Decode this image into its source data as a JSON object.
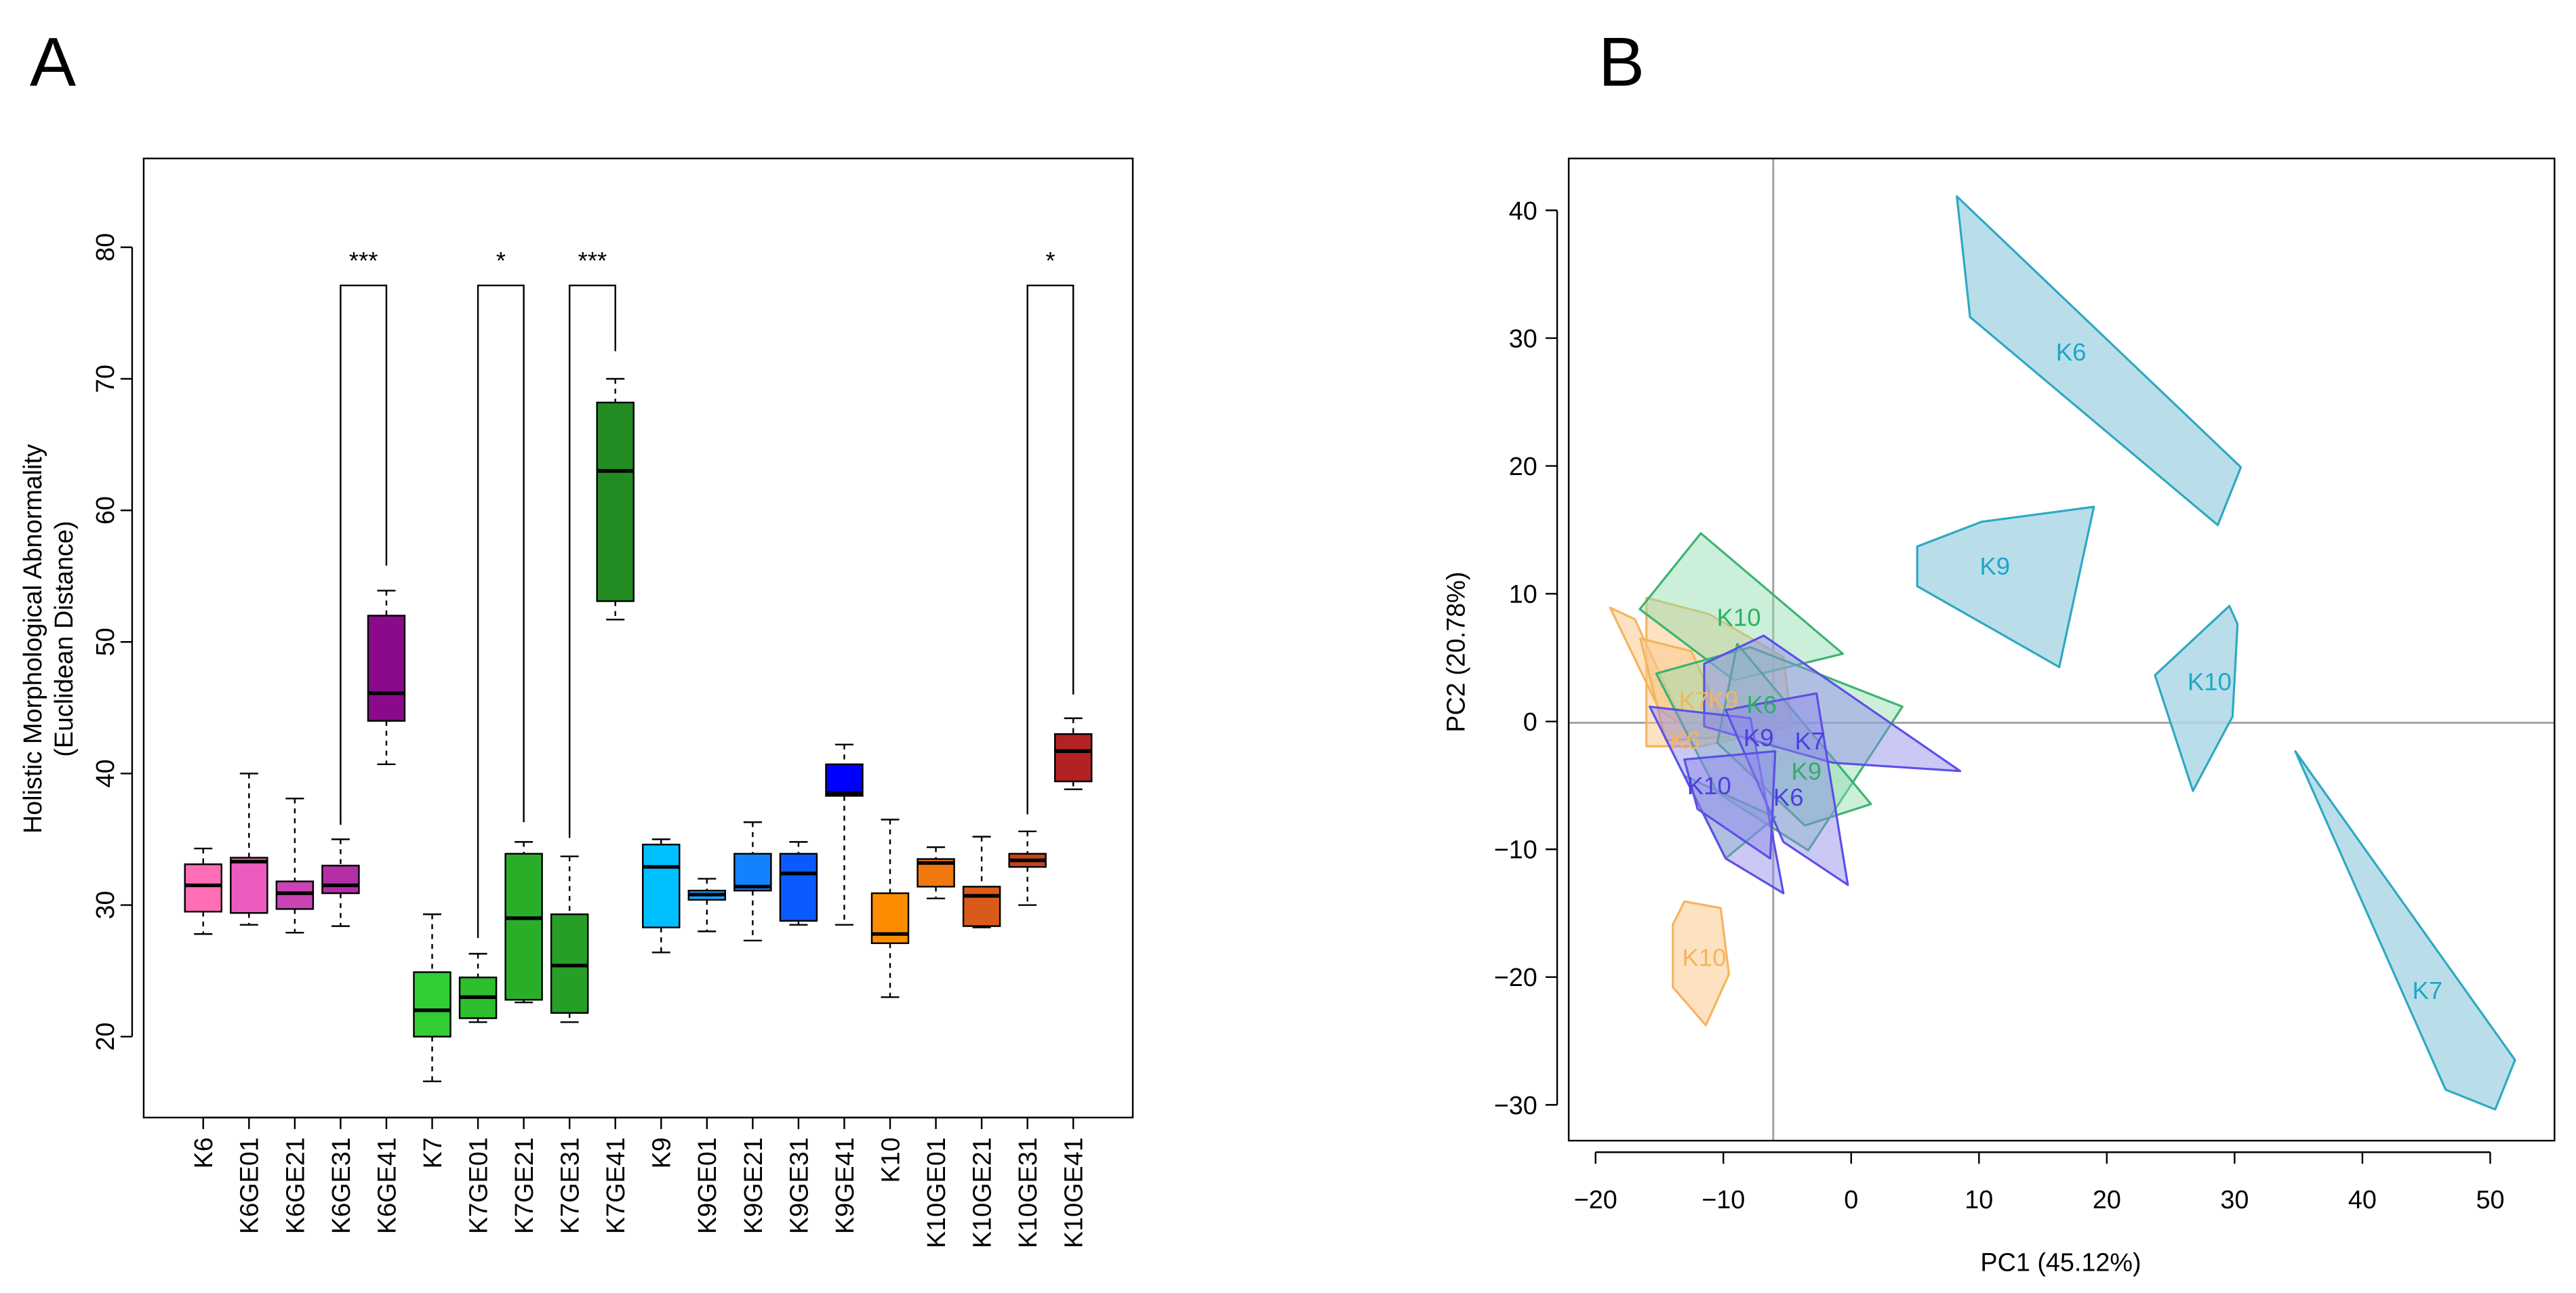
{
  "chart_data": [
    {
      "type": "box",
      "panel_label": "A",
      "ylabel": [
        "Holistic Morphological Abnormality",
        "(Euclidean Distance)"
      ],
      "xlim": [
        -0.3,
        21.3
      ],
      "ylim": [
        13.85,
        86.75
      ],
      "yticks": [
        {
          "value": 20,
          "label": "20"
        },
        {
          "value": 30,
          "label": "30"
        },
        {
          "value": 40,
          "label": "40"
        },
        {
          "value": 50,
          "label": "50"
        },
        {
          "value": 60,
          "label": "60"
        },
        {
          "value": 70,
          "label": "70"
        },
        {
          "value": 80,
          "label": "80"
        }
      ],
      "categories": [
        "K6",
        "K6GE01",
        "K6GE21",
        "K6GE31",
        "K6GE41",
        "K7",
        "K7GE01",
        "K7GE21",
        "K7GE31",
        "K7GE41",
        "K9",
        "K9GE01",
        "K9GE21",
        "K9GE31",
        "K9GE41",
        "K10",
        "K10GE01",
        "K10GE21",
        "K10GE31",
        "K10GE41"
      ],
      "boxes": [
        {
          "whisker_low": 27.8,
          "q1": 29.5,
          "median": 31.5,
          "q3": 33.1,
          "whisker_high": 34.3,
          "color": "#FF6EB4"
        },
        {
          "whisker_low": 28.5,
          "q1": 29.4,
          "median": 33.3,
          "q3": 33.6,
          "whisker_high": 40.0,
          "color": "#EC5CBE"
        },
        {
          "whisker_low": 27.9,
          "q1": 29.7,
          "median": 30.9,
          "q3": 31.8,
          "whisker_high": 38.1,
          "color": "#C943B5"
        },
        {
          "whisker_low": 28.4,
          "q1": 30.9,
          "median": 31.5,
          "q3": 33.0,
          "whisker_high": 35.0,
          "color": "#B22FA6"
        },
        {
          "whisker_low": 40.7,
          "q1": 44.0,
          "median": 46.1,
          "q3": 52.0,
          "whisker_high": 53.9,
          "color": "#8B0A8B"
        },
        {
          "whisker_low": 16.6,
          "q1": 20.0,
          "median": 22.0,
          "q3": 24.9,
          "whisker_high": 29.3,
          "color": "#32CD32"
        },
        {
          "whisker_low": 21.1,
          "q1": 21.4,
          "median": 23.0,
          "q3": 24.5,
          "whisker_high": 26.3,
          "color": "#2EBD2E"
        },
        {
          "whisker_low": 22.6,
          "q1": 22.8,
          "median": 29.0,
          "q3": 33.9,
          "whisker_high": 34.8,
          "color": "#2AAE2A"
        },
        {
          "whisker_low": 21.1,
          "q1": 21.8,
          "median": 25.4,
          "q3": 29.3,
          "whisker_high": 33.7,
          "color": "#279F27"
        },
        {
          "whisker_low": 51.7,
          "q1": 53.1,
          "median": 63.0,
          "q3": 68.2,
          "whisker_high": 70.0,
          "color": "#228B22"
        },
        {
          "whisker_low": 26.4,
          "q1": 28.3,
          "median": 32.9,
          "q3": 34.6,
          "whisker_high": 35.0,
          "color": "#00BFFF"
        },
        {
          "whisker_low": 28.0,
          "q1": 30.4,
          "median": 30.8,
          "q3": 31.1,
          "whisker_high": 32.0,
          "color": "#1AA4FF"
        },
        {
          "whisker_low": 27.3,
          "q1": 31.1,
          "median": 31.4,
          "q3": 33.9,
          "whisker_high": 36.3,
          "color": "#1482FF"
        },
        {
          "whisker_low": 28.5,
          "q1": 28.8,
          "median": 32.4,
          "q3": 33.9,
          "whisker_high": 34.8,
          "color": "#0A5AFF"
        },
        {
          "whisker_low": 28.5,
          "q1": 38.3,
          "median": 38.5,
          "q3": 40.7,
          "whisker_high": 42.2,
          "color": "#0000FF"
        },
        {
          "whisker_low": 23.0,
          "q1": 27.1,
          "median": 27.8,
          "q3": 30.9,
          "whisker_high": 36.5,
          "color": "#FF8C00"
        },
        {
          "whisker_low": 30.5,
          "q1": 31.4,
          "median": 33.2,
          "q3": 33.5,
          "whisker_high": 34.4,
          "color": "#F07810"
        },
        {
          "whisker_low": 28.3,
          "q1": 28.4,
          "median": 30.7,
          "q3": 31.4,
          "whisker_high": 35.2,
          "color": "#DA5A1A"
        },
        {
          "whisker_low": 30.0,
          "q1": 32.9,
          "median": 33.4,
          "q3": 33.9,
          "whisker_high": 35.6,
          "color": "#C6421E"
        },
        {
          "whisker_low": 38.8,
          "q1": 39.4,
          "median": 41.7,
          "q3": 43.0,
          "whisker_high": 44.2,
          "color": "#B22222"
        }
      ],
      "significance": [
        {
          "from_index": 4,
          "to_index": 5,
          "label": "***",
          "bracket_y": 77.1,
          "from_end": 36.1,
          "to_end": 55.8
        },
        {
          "from_index": 7,
          "to_index": 8,
          "label": "*",
          "bracket_y": 77.1,
          "from_end": 27.5,
          "to_end": 36.3
        },
        {
          "from_index": 9,
          "to_index": 10,
          "label": "***",
          "bracket_y": 77.1,
          "from_end": 35.1,
          "to_end": 72.1
        },
        {
          "from_index": 19,
          "to_index": 20,
          "label": "*",
          "bracket_y": 77.1,
          "from_end": 36.9,
          "to_end": 46.0
        }
      ]
    },
    {
      "type": "scatter",
      "panel_label": "B",
      "xlabel": "PC1 (45.12%)",
      "ylabel": "PC2 (20.78%)",
      "xlim": [
        -22.1,
        55.03
      ],
      "ylim": [
        -32.8,
        44.06
      ],
      "xticks": [
        {
          "value": -20,
          "label": "−20"
        },
        {
          "value": -10,
          "label": "−10"
        },
        {
          "value": 0,
          "label": "0"
        },
        {
          "value": 10,
          "label": "10"
        },
        {
          "value": 20,
          "label": "20"
        },
        {
          "value": 30,
          "label": "30"
        },
        {
          "value": 40,
          "label": "40"
        },
        {
          "value": 50,
          "label": "50"
        }
      ],
      "yticks": [
        {
          "value": -30,
          "label": "−30"
        },
        {
          "value": -20,
          "label": "−20"
        },
        {
          "value": -10,
          "label": "−10"
        },
        {
          "value": 0,
          "label": "0"
        },
        {
          "value": 10,
          "label": "10"
        },
        {
          "value": 20,
          "label": "20"
        },
        {
          "value": 30,
          "label": "30"
        },
        {
          "value": 40,
          "label": "40"
        }
      ],
      "reference_lines": {
        "x": -6.1,
        "y": -0.1,
        "color": "#A6A6A6"
      },
      "groups": [
        {
          "stroke": "#F5B45E",
          "fill": "#F9CB8E",
          "fill_opacity": 0.55,
          "label_color": "#F5B45E",
          "hulls": [
            {
              "label": "K10",
              "label_at": [
                -11.5,
                -18.5
              ],
              "points": [
                [
                  -13.05,
                  -14.08
                ],
                [
                  -10.21,
                  -14.6
                ],
                [
                  -9.56,
                  -19.77
                ],
                [
                  -11.37,
                  -23.77
                ],
                [
                  -13.95,
                  -20.8
                ],
                [
                  -13.95,
                  -15.89
                ]
              ]
            },
            {
              "label": "K9",
              "label_at": [
                -10.0,
                1.7
              ],
              "points": [
                [
                  -16.02,
                  9.69
                ],
                [
                  -11.11,
                  8.4
                ],
                [
                  -5.3,
                  5.04
                ],
                [
                  -4.65,
                  -0.39
                ],
                [
                  -11.76,
                  -1.94
                ],
                [
                  -16.02,
                  -1.94
                ]
              ]
            },
            {
              "label": "K6",
              "label_at": [
                -13.0,
                -1.5
              ],
              "points": [
                [
                  -18.86,
                  8.91
                ],
                [
                  -16.93,
                  8.01
                ],
                [
                  -13.05,
                  -0.39
                ],
                [
                  -14.99,
                  0.9
                ]
              ]
            },
            {
              "label": "K7",
              "label_at": [
                -12.3,
                1.6
              ],
              "points": [
                [
                  -16.5,
                  6.5
                ],
                [
                  -12.5,
                  5.5
                ],
                [
                  -9.5,
                  -1.2
                ],
                [
                  -14.5,
                  -1.5
                ]
              ]
            }
          ]
        },
        {
          "stroke": "#3CB371",
          "fill": "#8FDCAE",
          "fill_opacity": 0.45,
          "label_color": "#2EAF63",
          "hulls": [
            {
              "label": "K10",
              "label_at": [
                -8.79,
                8.14
              ],
              "points": [
                [
                  -11.76,
                  14.73
                ],
                [
                  -0.65,
                  5.3
                ],
                [
                  -9.17,
                  3.23
                ],
                [
                  -16.54,
                  8.79
                ]
              ]
            },
            {
              "label": "K6",
              "label_at": [
                -7.0,
                1.3
              ],
              "points": [
                [
                  -15.25,
                  3.75
                ],
                [
                  -7.88,
                  5.81
                ],
                [
                  4.01,
                  1.16
                ],
                [
                  -3.36,
                  -10.08
                ],
                [
                  -10.47,
                  -5.56
                ]
              ]
            },
            {
              "label": "K9",
              "label_at": [
                -3.5,
                -3.9
              ],
              "points": [
                [
                  -8.91,
                  6.07
                ],
                [
                  1.55,
                  -6.46
                ],
                [
                  -3.62,
                  -8.14
                ],
                [
                  -10.47,
                  -1.68
                ]
              ]
            },
            {
              "label": null,
              "label_at": null,
              "points": [
                [
                  -13.05,
                  -4.26
                ],
                [
                  -9.82,
                  -10.72
                ],
                [
                  -5.94,
                  -7.49
                ]
              ]
            }
          ]
        },
        {
          "stroke": "#5B50E6",
          "fill": "#8C84EC",
          "fill_opacity": 0.45,
          "label_color": "#4A3FE0",
          "hulls": [
            {
              "label": "K9",
              "label_at": [
                -7.24,
                -1.29
              ],
              "points": [
                [
                  -11.5,
                  4.52
                ],
                [
                  -6.85,
                  6.72
                ],
                [
                  8.53,
                  -3.88
                ],
                [
                  -1.42,
                  -3.23
                ],
                [
                  -11.5,
                  -0.39
                ]
              ]
            },
            {
              "label": "K10",
              "label_at": [
                -11.11,
                -5.04
              ],
              "points": [
                [
                  -15.76,
                  1.16
                ],
                [
                  -7.88,
                  0.26
                ],
                [
                  -5.3,
                  -13.44
                ],
                [
                  -9.82,
                  -10.72
                ]
              ]
            },
            {
              "label": "K7",
              "label_at": [
                -3.23,
                -1.55
              ],
              "points": [
                [
                  -9.82,
                  0.9
                ],
                [
                  -2.71,
                  2.2
                ],
                [
                  -0.26,
                  -12.79
                ],
                [
                  -5.3,
                  -9.43
                ]
              ]
            },
            {
              "label": "K6",
              "label_at": [
                -4.91,
                -5.94
              ],
              "points": [
                [
                  -13.05,
                  -2.97
                ],
                [
                  -5.94,
                  -2.33
                ],
                [
                  -6.33,
                  -10.72
                ],
                [
                  -12.02,
                  -6.85
                ]
              ]
            }
          ]
        },
        {
          "stroke": "#2DA8C2",
          "fill": "#ADD8E6",
          "fill_opacity": 0.85,
          "label_color": "#1FA6C6",
          "hulls": [
            {
              "label": "K6",
              "label_at": [
                17.2,
                28.9
              ],
              "points": [
                [
                  8.27,
                  41.09
                ],
                [
                  9.3,
                  31.65
                ],
                [
                  28.68,
                  15.37
                ],
                [
                  30.49,
                  19.9
                ]
              ]
            },
            {
              "label": "K9",
              "label_at": [
                11.24,
                12.14
              ],
              "points": [
                [
                  5.17,
                  13.7
                ],
                [
                  10.21,
                  15.63
                ],
                [
                  18.99,
                  16.8
                ],
                [
                  16.28,
                  4.26
                ],
                [
                  5.17,
                  10.59
                ]
              ]
            },
            {
              "label": "K10",
              "label_at": [
                28.04,
                3.1
              ],
              "points": [
                [
                  29.59,
                  9.04
                ],
                [
                  30.23,
                  7.62
                ],
                [
                  29.84,
                  0.39
                ],
                [
                  26.74,
                  -5.43
                ],
                [
                  23.77,
                  3.62
                ]
              ]
            },
            {
              "label": "K7",
              "label_at": [
                45.09,
                -21.06
              ],
              "points": [
                [
                  34.75,
                  -2.33
                ],
                [
                  51.94,
                  -26.49
                ],
                [
                  50.39,
                  -30.36
                ],
                [
                  46.51,
                  -28.81
                ]
              ]
            }
          ]
        }
      ]
    }
  ]
}
